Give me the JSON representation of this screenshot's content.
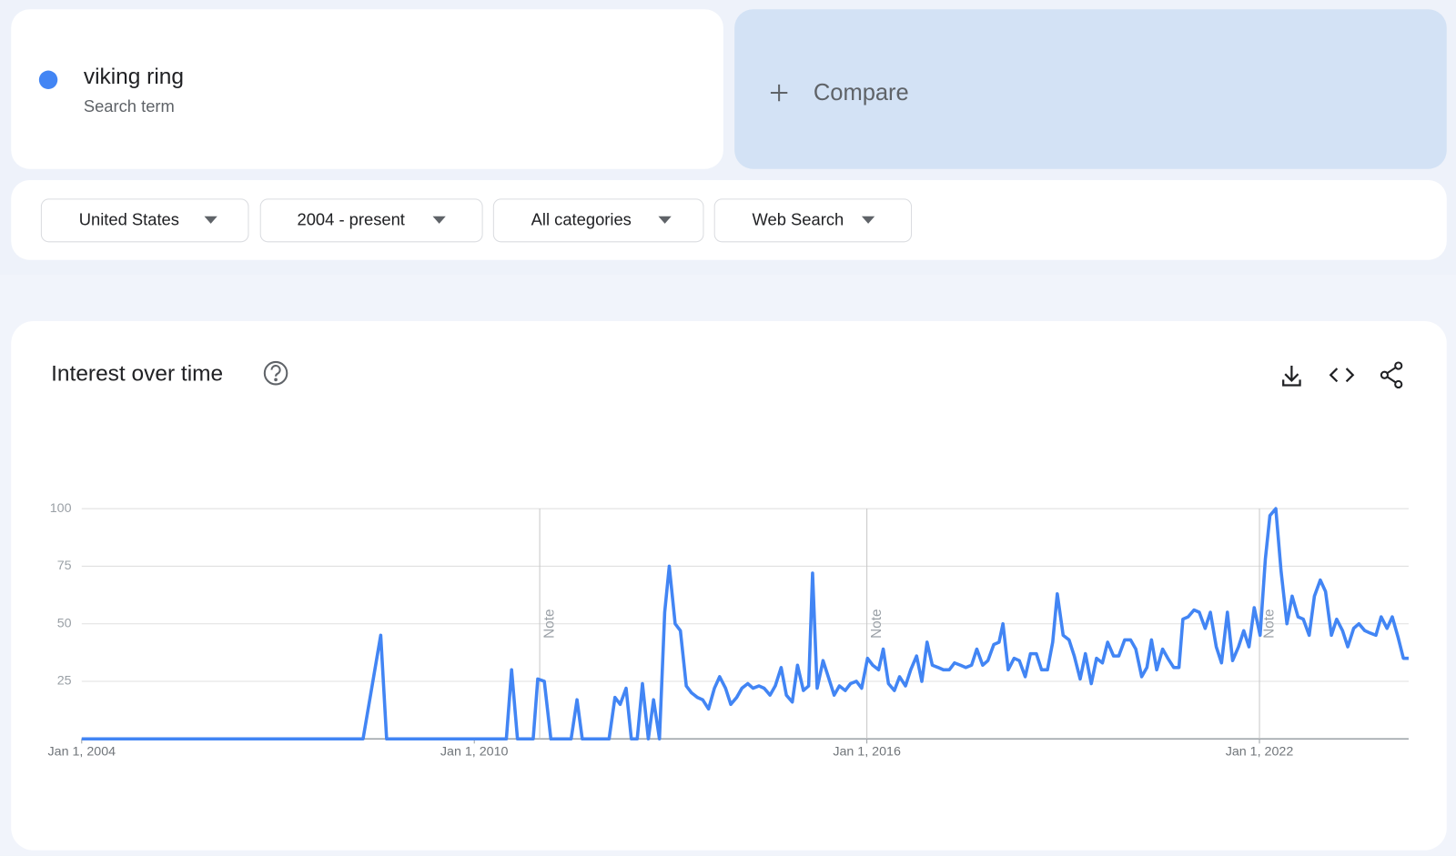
{
  "compare": {
    "label": "Compare"
  },
  "search_term": {
    "type": "Search term"
  },
  "filters": [
    "United States",
    "2004 - present",
    "All categories",
    "Web Search"
  ],
  "panel": {
    "title": "Interest over time"
  },
  "chart_data": {
    "type": "line",
    "x": [
      2004.0,
      2008.3,
      2008.57,
      2008.66,
      2010.49,
      2010.57,
      2010.66,
      2010.9,
      2010.97,
      2011.07,
      2011.17,
      2011.48,
      2011.57,
      2011.65,
      2012.06,
      2012.15,
      2012.23,
      2012.32,
      2012.4,
      2012.49,
      2012.57,
      2012.66,
      2012.74,
      2012.83,
      2012.91,
      2012.98,
      2013.07,
      2013.15,
      2013.24,
      2013.32,
      2013.41,
      2013.49,
      2013.58,
      2013.67,
      2013.75,
      2013.84,
      2013.92,
      2014.01,
      2014.09,
      2014.18,
      2014.26,
      2014.35,
      2014.43,
      2014.52,
      2014.6,
      2014.69,
      2014.77,
      2014.86,
      2014.94,
      2015.03,
      2015.11,
      2015.17,
      2015.24,
      2015.33,
      2015.41,
      2015.5,
      2015.58,
      2015.67,
      2015.75,
      2015.84,
      2015.92,
      2016.01,
      2016.09,
      2016.18,
      2016.25,
      2016.33,
      2016.42,
      2016.5,
      2016.59,
      2016.67,
      2016.76,
      2016.84,
      2016.92,
      2017.0,
      2017.09,
      2017.17,
      2017.26,
      2017.34,
      2017.43,
      2017.51,
      2017.6,
      2017.68,
      2017.77,
      2017.85,
      2017.94,
      2018.02,
      2018.08,
      2018.16,
      2018.25,
      2018.33,
      2018.42,
      2018.5,
      2018.59,
      2018.67,
      2018.76,
      2018.84,
      2018.91,
      2019.0,
      2019.09,
      2019.17,
      2019.26,
      2019.34,
      2019.43,
      2019.51,
      2019.6,
      2019.68,
      2019.77,
      2019.85,
      2019.94,
      2020.03,
      2020.11,
      2020.2,
      2020.28,
      2020.35,
      2020.43,
      2020.52,
      2020.6,
      2020.69,
      2020.77,
      2020.83,
      2020.91,
      2021.0,
      2021.08,
      2021.17,
      2021.25,
      2021.34,
      2021.42,
      2021.51,
      2021.59,
      2021.68,
      2021.76,
      2021.84,
      2021.92,
      2022.01,
      2022.09,
      2022.16,
      2022.25,
      2022.33,
      2022.42,
      2022.5,
      2022.59,
      2022.67,
      2022.76,
      2022.84,
      2022.93,
      2023.01,
      2023.1,
      2023.18,
      2023.27,
      2023.35,
      2023.44,
      2023.52,
      2023.61,
      2023.69,
      2023.78,
      2023.86,
      2023.95,
      2024.03,
      2024.12,
      2024.2,
      2024.28
    ],
    "series": [
      {
        "name": "viking ring",
        "color": "#4285f4",
        "values": [
          0,
          0,
          45,
          0,
          0,
          30,
          0,
          0,
          26,
          25,
          0,
          0,
          17,
          0,
          0,
          18,
          15,
          22,
          0,
          0,
          24,
          0,
          17,
          0,
          55,
          75,
          50,
          47,
          23,
          20,
          18,
          17,
          13,
          22,
          27,
          22,
          15,
          18,
          22,
          24,
          22,
          23,
          22,
          19,
          23,
          31,
          19,
          16,
          32,
          21,
          23,
          72,
          22,
          34,
          27,
          19,
          23,
          21,
          24,
          25,
          22,
          35,
          32,
          30,
          39,
          24,
          21,
          27,
          23,
          30,
          36,
          25,
          42,
          32,
          31,
          30,
          30,
          33,
          32,
          31,
          32,
          39,
          32,
          34,
          41,
          42,
          50,
          30,
          35,
          34,
          27,
          37,
          37,
          30,
          30,
          42,
          63,
          45,
          43,
          36,
          26,
          37,
          24,
          35,
          33,
          42,
          36,
          36,
          43,
          43,
          39,
          27,
          31,
          43,
          30,
          39,
          35,
          31,
          31,
          52,
          53,
          56,
          55,
          48,
          55,
          40,
          33,
          55,
          34,
          40,
          47,
          40,
          57,
          45,
          78,
          97,
          100,
          73,
          50,
          62,
          53,
          52,
          45,
          62,
          69,
          64,
          45,
          52,
          47,
          40,
          48,
          50,
          47,
          46,
          45,
          53,
          48,
          53,
          44,
          35,
          35
        ]
      }
    ],
    "xlim": [
      2004,
      2024.28
    ],
    "xticks": [
      {
        "value": 2004,
        "label": "Jan 1, 2004"
      },
      {
        "value": 2010,
        "label": "Jan 1, 2010"
      },
      {
        "value": 2016,
        "label": "Jan 1, 2016"
      },
      {
        "value": 2022,
        "label": "Jan 1, 2022"
      }
    ],
    "ylim": [
      0,
      100
    ],
    "yticks": [
      25,
      50,
      75,
      100
    ],
    "grid": true,
    "annotations": [
      {
        "x": 2011.0,
        "text": "Note"
      },
      {
        "x": 2016.0,
        "text": "Note"
      },
      {
        "x": 2022.0,
        "text": "Note"
      }
    ]
  }
}
